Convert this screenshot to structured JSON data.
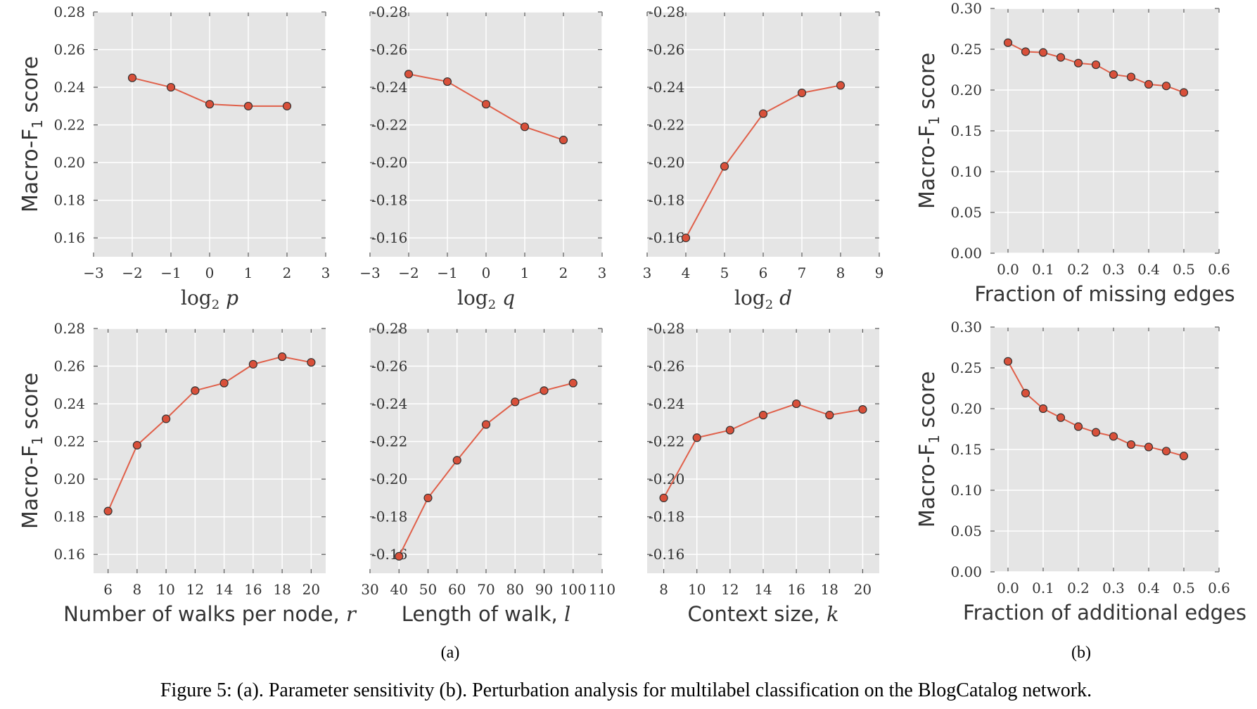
{
  "caption": "Figure 5: (a). Parameter sensitivity (b). Perturbation analysis for multilabel classification on the BlogCatalog network.",
  "group_labels": {
    "a": "(a)",
    "b": "(b)"
  },
  "colors": {
    "line": "#e0604a",
    "marker_fill": "#d9503a",
    "marker_edge": "#333333",
    "plot_bg": "#e5e5e5",
    "grid": "#ffffff"
  },
  "chart_data": [
    {
      "id": "log2p",
      "type": "line",
      "xlabel": "log2 p",
      "ylabel": "Macro-F1 score",
      "xlim": [
        -3,
        3
      ],
      "ylim": [
        0.15,
        0.28
      ],
      "xticks": [
        -3,
        -2,
        -1,
        0,
        1,
        2,
        3
      ],
      "yticks": [
        0.16,
        0.18,
        0.2,
        0.22,
        0.24,
        0.26,
        0.28
      ],
      "x": [
        -2,
        -1,
        0,
        1,
        2
      ],
      "y": [
        0.245,
        0.24,
        0.231,
        0.23,
        0.23
      ],
      "grid": true
    },
    {
      "id": "log2q",
      "type": "line",
      "xlabel": "log2 q",
      "ylabel": "",
      "xlim": [
        -3,
        3
      ],
      "ylim": [
        0.15,
        0.28
      ],
      "xticks": [
        -3,
        -2,
        -1,
        0,
        1,
        2,
        3
      ],
      "yticks": [
        0.16,
        0.18,
        0.2,
        0.22,
        0.24,
        0.26,
        0.28
      ],
      "x": [
        -2,
        -1,
        0,
        1,
        2
      ],
      "y": [
        0.247,
        0.243,
        0.231,
        0.219,
        0.212
      ],
      "grid": true
    },
    {
      "id": "log2d",
      "type": "line",
      "xlabel": "log2 d",
      "ylabel": "",
      "xlim": [
        3,
        9
      ],
      "ylim": [
        0.15,
        0.28
      ],
      "xticks": [
        3,
        4,
        5,
        6,
        7,
        8,
        9
      ],
      "yticks": [
        0.16,
        0.18,
        0.2,
        0.22,
        0.24,
        0.26,
        0.28
      ],
      "x": [
        4,
        5,
        6,
        7,
        8
      ],
      "y": [
        0.16,
        0.198,
        0.226,
        0.237,
        0.241
      ],
      "grid": true
    },
    {
      "id": "missing",
      "type": "line",
      "xlabel": "Fraction of missing edges",
      "ylabel": "Macro-F1 score",
      "xlim": [
        -0.05,
        0.6
      ],
      "ylim": [
        0.0,
        0.3
      ],
      "xticks": [
        0.0,
        0.1,
        0.2,
        0.3,
        0.4,
        0.5,
        0.6
      ],
      "yticks": [
        0.0,
        0.05,
        0.1,
        0.15,
        0.2,
        0.25,
        0.3
      ],
      "x": [
        0.0,
        0.05,
        0.1,
        0.15,
        0.2,
        0.25,
        0.3,
        0.35,
        0.4,
        0.45,
        0.5
      ],
      "y": [
        0.258,
        0.247,
        0.246,
        0.24,
        0.233,
        0.231,
        0.219,
        0.216,
        0.207,
        0.205,
        0.197
      ],
      "grid": true
    },
    {
      "id": "walks",
      "type": "line",
      "xlabel": "Number of walks per node, r",
      "ylabel": "Macro-F1 score",
      "xlim": [
        5,
        21
      ],
      "ylim": [
        0.15,
        0.28
      ],
      "xticks": [
        6,
        8,
        10,
        12,
        14,
        16,
        18,
        20
      ],
      "yticks": [
        0.16,
        0.18,
        0.2,
        0.22,
        0.24,
        0.26,
        0.28
      ],
      "x": [
        6,
        8,
        10,
        12,
        14,
        16,
        18,
        20
      ],
      "y": [
        0.183,
        0.218,
        0.232,
        0.247,
        0.251,
        0.261,
        0.265,
        0.262
      ],
      "grid": true
    },
    {
      "id": "walklen",
      "type": "line",
      "xlabel": "Length of walk, l",
      "ylabel": "",
      "xlim": [
        30,
        110
      ],
      "ylim": [
        0.15,
        0.28
      ],
      "xticks": [
        30,
        40,
        50,
        60,
        70,
        80,
        90,
        100,
        110
      ],
      "yticks": [
        0.16,
        0.18,
        0.2,
        0.22,
        0.24,
        0.26,
        0.28
      ],
      "x": [
        40,
        50,
        60,
        70,
        80,
        90,
        100
      ],
      "y": [
        0.159,
        0.19,
        0.21,
        0.229,
        0.241,
        0.247,
        0.251
      ],
      "grid": true
    },
    {
      "id": "context",
      "type": "line",
      "xlabel": "Context size, k",
      "ylabel": "",
      "xlim": [
        7,
        21
      ],
      "ylim": [
        0.15,
        0.28
      ],
      "xticks": [
        8,
        10,
        12,
        14,
        16,
        18,
        20
      ],
      "yticks": [
        0.16,
        0.18,
        0.2,
        0.22,
        0.24,
        0.26,
        0.28
      ],
      "x": [
        8,
        10,
        12,
        14,
        16,
        18,
        20
      ],
      "y": [
        0.19,
        0.222,
        0.226,
        0.234,
        0.24,
        0.234,
        0.237
      ],
      "grid": true
    },
    {
      "id": "additional",
      "type": "line",
      "xlabel": "Fraction of additional edges",
      "ylabel": "Macro-F1 score",
      "xlim": [
        -0.05,
        0.6
      ],
      "ylim": [
        0.0,
        0.3
      ],
      "xticks": [
        0.0,
        0.1,
        0.2,
        0.3,
        0.4,
        0.5,
        0.6
      ],
      "yticks": [
        0.0,
        0.05,
        0.1,
        0.15,
        0.2,
        0.25,
        0.3
      ],
      "x": [
        0.0,
        0.05,
        0.1,
        0.15,
        0.2,
        0.25,
        0.3,
        0.35,
        0.4,
        0.45,
        0.5
      ],
      "y": [
        0.258,
        0.219,
        0.2,
        0.189,
        0.178,
        0.171,
        0.166,
        0.156,
        0.153,
        0.148,
        0.142
      ],
      "grid": true
    }
  ]
}
